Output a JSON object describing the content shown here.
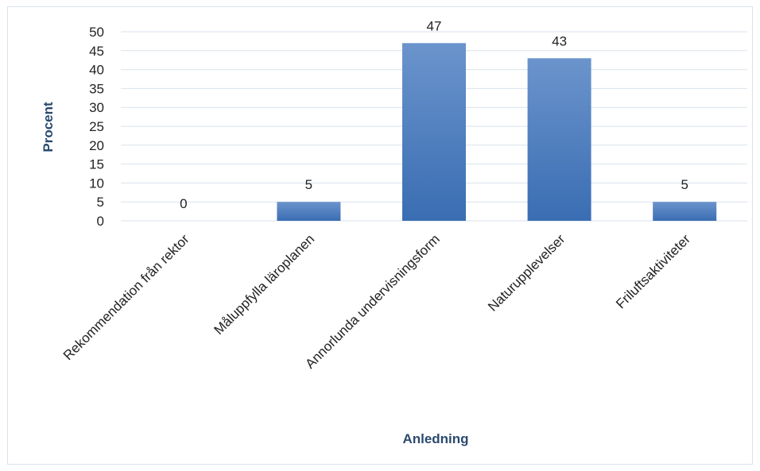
{
  "chart_data": {
    "type": "bar",
    "categories": [
      "Rekommendation från rektor",
      "Måluppfylla läroplanen",
      "Annorlunda undervisningsform",
      "Naturupplevelser",
      "Friluftsaktiviteter"
    ],
    "values": [
      0,
      5,
      47,
      43,
      5
    ],
    "data_labels": [
      "0",
      "5",
      "47",
      "43",
      "5"
    ],
    "title": "",
    "xlabel": "Anledning",
    "ylabel": "Procent",
    "ylim": [
      0,
      50
    ],
    "yticks": [
      "0",
      "5",
      "10",
      "15",
      "20",
      "25",
      "30",
      "35",
      "40",
      "45",
      "50"
    ],
    "grid": true,
    "legend": "none",
    "colors": {
      "bar_top": "#6b94cc",
      "bar_bottom": "#3a6db3",
      "gridline": "#d9e2ec",
      "axis_title": "#2b4a6f"
    }
  }
}
